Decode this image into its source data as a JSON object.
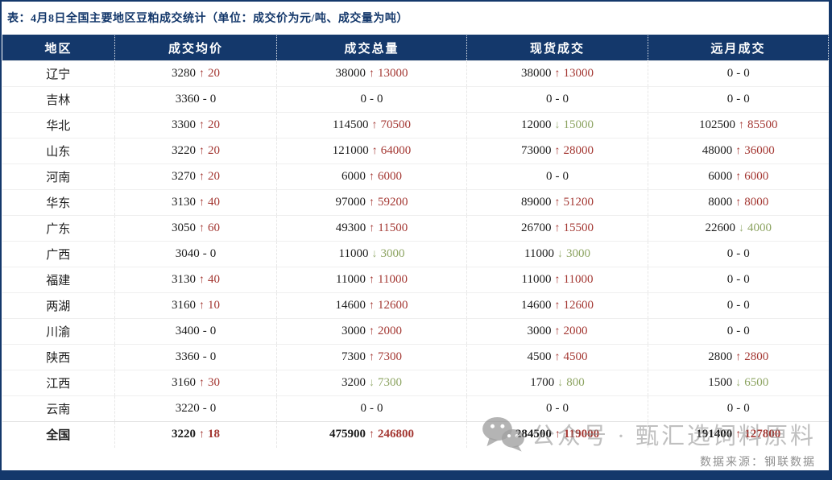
{
  "chart_data": {
    "type": "table",
    "title": "表：4月8日全国主要地区豆粕成交统计（单位：成交价为元/吨、成交量为吨）",
    "columns": [
      "地区",
      "成交均价",
      "成交总量",
      "现货成交",
      "远月成交"
    ],
    "units": {
      "price": "元/吨",
      "volume": "吨"
    },
    "rows": [
      {
        "region": "辽宁",
        "cells": [
          {
            "v": "3280",
            "d": "up",
            "c": "20"
          },
          {
            "v": "38000",
            "d": "up",
            "c": "13000"
          },
          {
            "v": "38000",
            "d": "up",
            "c": "13000"
          },
          {
            "v": "0",
            "d": "none",
            "c": "0"
          }
        ]
      },
      {
        "region": "吉林",
        "cells": [
          {
            "v": "3360",
            "d": "none",
            "c": "0"
          },
          {
            "v": "0",
            "d": "none",
            "c": "0"
          },
          {
            "v": "0",
            "d": "none",
            "c": "0"
          },
          {
            "v": "0",
            "d": "none",
            "c": "0"
          }
        ]
      },
      {
        "region": "华北",
        "cells": [
          {
            "v": "3300",
            "d": "up",
            "c": "20"
          },
          {
            "v": "114500",
            "d": "up",
            "c": "70500"
          },
          {
            "v": "12000",
            "d": "down",
            "c": "15000"
          },
          {
            "v": "102500",
            "d": "up",
            "c": "85500"
          }
        ]
      },
      {
        "region": "山东",
        "cells": [
          {
            "v": "3220",
            "d": "up",
            "c": "20"
          },
          {
            "v": "121000",
            "d": "up",
            "c": "64000"
          },
          {
            "v": "73000",
            "d": "up",
            "c": "28000"
          },
          {
            "v": "48000",
            "d": "up",
            "c": "36000"
          }
        ]
      },
      {
        "region": "河南",
        "cells": [
          {
            "v": "3270",
            "d": "up",
            "c": "20"
          },
          {
            "v": "6000",
            "d": "up",
            "c": "6000"
          },
          {
            "v": "0",
            "d": "none",
            "c": "0"
          },
          {
            "v": "6000",
            "d": "up",
            "c": "6000"
          }
        ]
      },
      {
        "region": "华东",
        "cells": [
          {
            "v": "3130",
            "d": "up",
            "c": "40"
          },
          {
            "v": "97000",
            "d": "up",
            "c": "59200"
          },
          {
            "v": "89000",
            "d": "up",
            "c": "51200"
          },
          {
            "v": "8000",
            "d": "up",
            "c": "8000"
          }
        ]
      },
      {
        "region": "广东",
        "cells": [
          {
            "v": "3050",
            "d": "up",
            "c": "60"
          },
          {
            "v": "49300",
            "d": "up",
            "c": "11500"
          },
          {
            "v": "26700",
            "d": "up",
            "c": "15500"
          },
          {
            "v": "22600",
            "d": "down",
            "c": "4000"
          }
        ]
      },
      {
        "region": "广西",
        "cells": [
          {
            "v": "3040",
            "d": "none",
            "c": "0"
          },
          {
            "v": "11000",
            "d": "down",
            "c": "3000"
          },
          {
            "v": "11000",
            "d": "down",
            "c": "3000"
          },
          {
            "v": "0",
            "d": "none",
            "c": "0"
          }
        ]
      },
      {
        "region": "福建",
        "cells": [
          {
            "v": "3130",
            "d": "up",
            "c": "40"
          },
          {
            "v": "11000",
            "d": "up",
            "c": "11000"
          },
          {
            "v": "11000",
            "d": "up",
            "c": "11000"
          },
          {
            "v": "0",
            "d": "none",
            "c": "0"
          }
        ]
      },
      {
        "region": "两湖",
        "cells": [
          {
            "v": "3160",
            "d": "up",
            "c": "10"
          },
          {
            "v": "14600",
            "d": "up",
            "c": "12600"
          },
          {
            "v": "14600",
            "d": "up",
            "c": "12600"
          },
          {
            "v": "0",
            "d": "none",
            "c": "0"
          }
        ]
      },
      {
        "region": "川渝",
        "cells": [
          {
            "v": "3400",
            "d": "none",
            "c": "0"
          },
          {
            "v": "3000",
            "d": "up",
            "c": "2000"
          },
          {
            "v": "3000",
            "d": "up",
            "c": "2000"
          },
          {
            "v": "0",
            "d": "none",
            "c": "0"
          }
        ]
      },
      {
        "region": "陕西",
        "cells": [
          {
            "v": "3360",
            "d": "none",
            "c": "0"
          },
          {
            "v": "7300",
            "d": "up",
            "c": "7300"
          },
          {
            "v": "4500",
            "d": "up",
            "c": "4500"
          },
          {
            "v": "2800",
            "d": "up",
            "c": "2800"
          }
        ]
      },
      {
        "region": "江西",
        "cells": [
          {
            "v": "3160",
            "d": "up",
            "c": "30"
          },
          {
            "v": "3200",
            "d": "down",
            "c": "7300"
          },
          {
            "v": "1700",
            "d": "down",
            "c": "800"
          },
          {
            "v": "1500",
            "d": "down",
            "c": "6500"
          }
        ]
      },
      {
        "region": "云南",
        "cells": [
          {
            "v": "3220",
            "d": "none",
            "c": "0"
          },
          {
            "v": "0",
            "d": "none",
            "c": "0"
          },
          {
            "v": "0",
            "d": "none",
            "c": "0"
          },
          {
            "v": "0",
            "d": "none",
            "c": "0"
          }
        ]
      },
      {
        "region": "全国",
        "is_total": true,
        "cells": [
          {
            "v": "3220",
            "d": "up",
            "c": "18"
          },
          {
            "v": "475900",
            "d": "up",
            "c": "246800"
          },
          {
            "v": "284500",
            "d": "up",
            "c": "119000"
          },
          {
            "v": "191400",
            "d": "up",
            "c": "127800"
          }
        ]
      }
    ]
  },
  "watermark": {
    "icon": "wechat-icon",
    "text": "公众号 · 甄汇选饲料原料"
  },
  "footer": {
    "source": "数据来源：钢联数据"
  },
  "colors": {
    "header_bg": "#14386b",
    "up_red": "#a43833",
    "down_green": "#8da462"
  }
}
